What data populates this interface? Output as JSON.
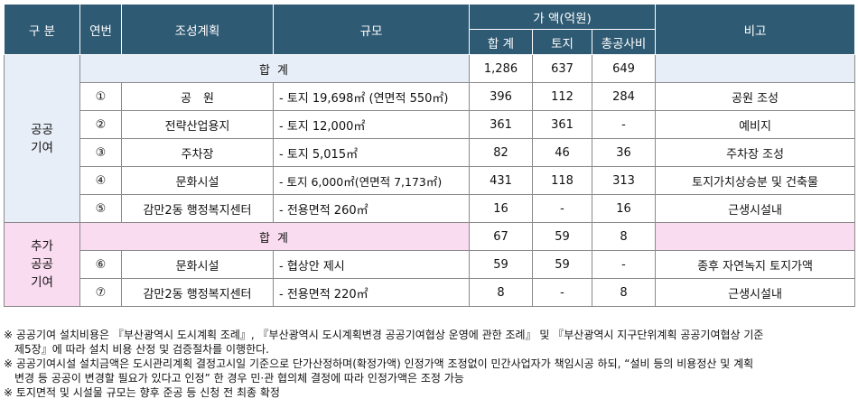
{
  "header": {
    "category": "구 분",
    "number": "연번",
    "plan": "조성계획",
    "scale": "규모",
    "amount_group": "가 액(억원)",
    "total": "합 계",
    "land": "토지",
    "construction": "총공사비",
    "remarks": "비고"
  },
  "sections": [
    {
      "name": "공공\n기여",
      "subtotal": {
        "label": "합 계",
        "total": "1,286",
        "land": "637",
        "construction": "649",
        "remarks": ""
      },
      "rows": [
        {
          "no": "①",
          "plan": "공　원",
          "scale": "- 토지 19,698㎡ (연면적 550㎡)",
          "total": "396",
          "land": "112",
          "construction": "284",
          "remarks": "공원 조성"
        },
        {
          "no": "②",
          "plan": "전략산업용지",
          "scale": "- 토지 12,000㎡",
          "total": "361",
          "land": "361",
          "construction": "-",
          "remarks": "예비지"
        },
        {
          "no": "③",
          "plan": "주차장",
          "scale": "- 토지 5,015㎡",
          "total": "82",
          "land": "46",
          "construction": "36",
          "remarks": "주차장 조성"
        },
        {
          "no": "④",
          "plan": "문화시설",
          "scale": "- 토지 6,000㎡(연면적 7,173㎡)",
          "total": "431",
          "land": "118",
          "construction": "313",
          "remarks": "토지가치상승분 및 건축물"
        },
        {
          "no": "⑤",
          "plan": "감만2동 행정복지센터",
          "scale": "- 전용면적 260㎡",
          "total": "16",
          "land": "-",
          "construction": "16",
          "remarks": "근생시설내"
        }
      ]
    },
    {
      "name": "추가\n공공\n기여",
      "subtotal": {
        "label": "합 계",
        "total": "67",
        "land": "59",
        "construction": "8",
        "remarks": ""
      },
      "rows": [
        {
          "no": "⑥",
          "plan": "문화시설",
          "scale": "- 협상안 제시",
          "total": "59",
          "land": "59",
          "construction": "-",
          "remarks": "종후 자연녹지 토지가액"
        },
        {
          "no": "⑦",
          "plan": "감만2동 행정복지센터",
          "scale": "- 전용면적 220㎡",
          "total": "8",
          "land": "-",
          "construction": "8",
          "remarks": "근생시설내"
        }
      ]
    }
  ],
  "notes": [
    "※ 공공기여 설치비용은 『부산광역시 도시계획 조례』, 『부산광역시 도시계획변경 공공기여협상 운영에 관한 조례』 및 『부산광역시 지구단위계획 공공기여협상 기준",
    "제5장』에 따라 설치 비용 산정 및 검증절차를 이행한다.",
    "※ 공공기여시설 설치금액은 도시관리계획 결정고시일 기준으로 단가산정하며(확정가액) 인정가액 조정없이 민간사업자가 책임시공 하되, “설비 등의 비용정산 및 계획",
    "변경 등 공공이 변경할 필요가 있다고 인정” 한 경우 민·관 협의체 결정에 따라 인정가액은 조정 가능",
    "※ 토지면적 및 시설물 규모는 향후 준공 등 신청 전 최종 확정"
  ]
}
